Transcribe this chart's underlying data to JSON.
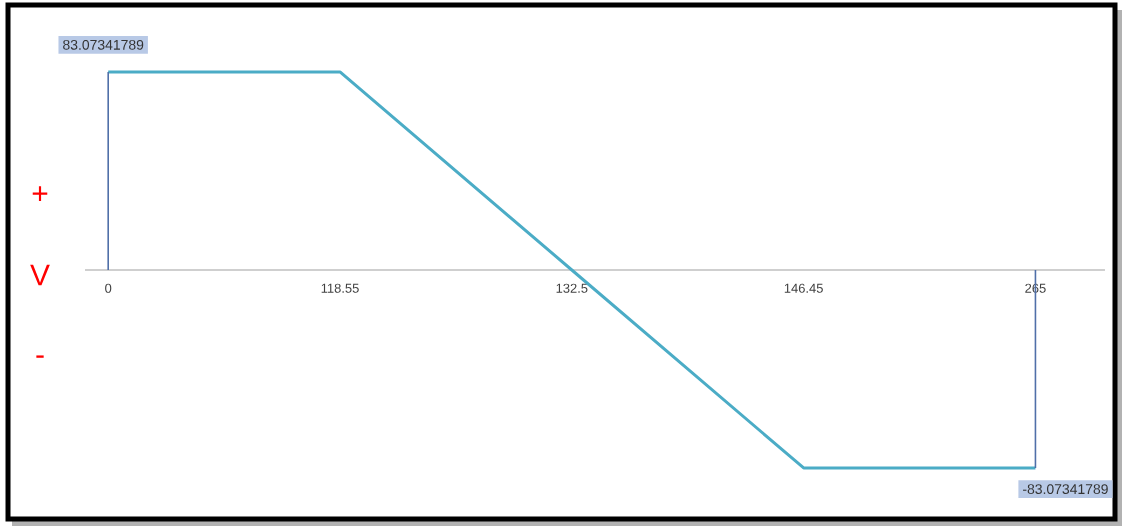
{
  "chart_data": {
    "type": "line",
    "categories": [
      "0",
      "118.55",
      "132.5",
      "146.45",
      "265"
    ],
    "series": [
      {
        "color": "#4bacc6",
        "values": [
          83.07341789,
          83.07341789,
          0,
          -83.07341789,
          -83.07341789
        ],
        "value_labels": [
          "83.07341789",
          null,
          null,
          null,
          "-83.07341789"
        ]
      },
      {
        "color": "#4f6fa8",
        "x": [
          "0",
          "0"
        ],
        "values": [
          0,
          83.07341789
        ]
      },
      {
        "color": "#4f6fa8",
        "x": [
          "265",
          "265"
        ],
        "values": [
          -83.07341789,
          0
        ]
      }
    ],
    "annotations": [
      "+",
      "V",
      "-"
    ],
    "marker": "none",
    "line_style": "solid"
  }
}
